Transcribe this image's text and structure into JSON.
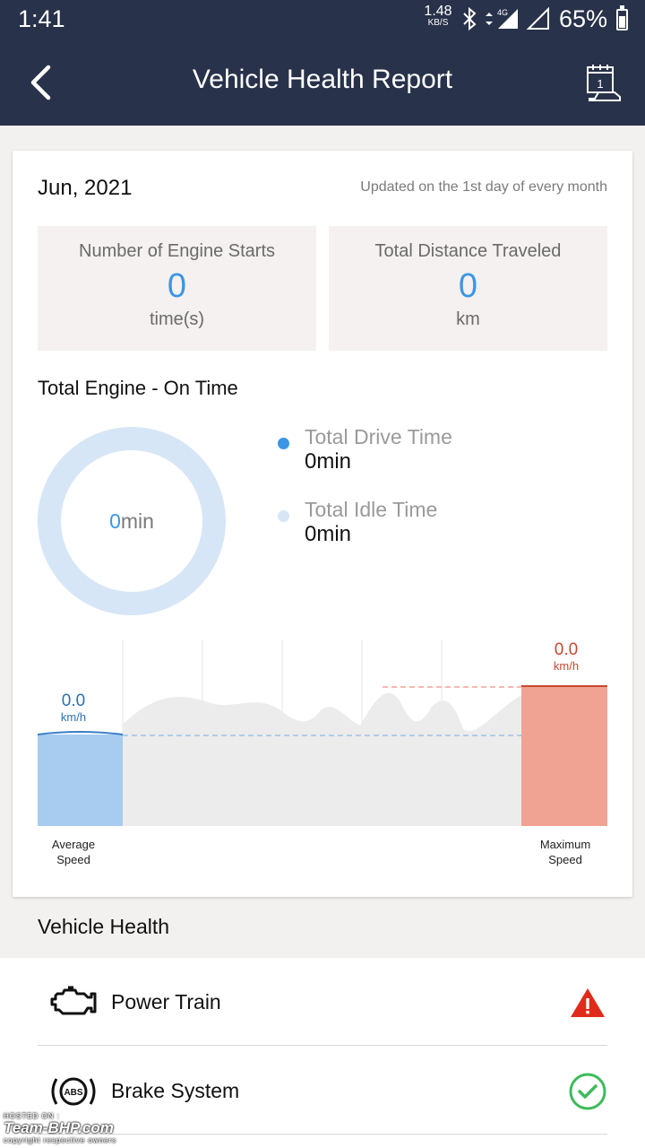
{
  "status_bar": {
    "time": "1:41",
    "net_rate": "1.48",
    "net_unit": "KB/S",
    "network_type": "4G",
    "battery": "65%",
    "battery_level": 0.65
  },
  "app_bar": {
    "title": "Vehicle Health Report",
    "back_icon": "chevron-left-icon",
    "calendar_icon": "calendar-car-icon"
  },
  "report": {
    "month": "Jun, 2021",
    "updated_note": "Updated on the 1st day of every month",
    "engine_starts": {
      "label": "Number of Engine Starts",
      "value": "0",
      "unit": "time(s)"
    },
    "distance": {
      "label": "Total Distance Traveled",
      "value": "0",
      "unit": "km"
    },
    "engine_on_title": "Total Engine - On Time",
    "donut": {
      "value": "0",
      "unit": "min"
    },
    "legend": [
      {
        "label": "Total Drive Time",
        "value": "0min",
        "color": "#3b96e6"
      },
      {
        "label": "Total Idle Time",
        "value": "0min",
        "color": "#d6e6f6"
      }
    ]
  },
  "chart_data": {
    "type": "bar",
    "categories": [
      "Average Speed",
      "Maximum Speed"
    ],
    "values": [
      0.0,
      0.0
    ],
    "value_labels": [
      "0.0",
      "0.0"
    ],
    "unit": "km/h",
    "captions": [
      [
        "Average",
        "Speed"
      ],
      [
        "Maximum",
        "Speed"
      ]
    ],
    "colors": {
      "average": "#a8ccf0",
      "average_line": "#3b80c8",
      "maximum": "#f0a293",
      "maximum_line": "#c8482f",
      "background_wave": "#ececec"
    }
  },
  "vehicle_health": {
    "title": "Vehicle Health",
    "items": [
      {
        "label": "Power Train",
        "icon": "engine-icon",
        "status": "warning",
        "status_icon": "warning-triangle-icon"
      },
      {
        "label": "Brake System",
        "icon": "abs-icon",
        "status": "ok",
        "status_icon": "check-circle-icon"
      }
    ]
  },
  "watermark": {
    "top": "HOSTED ON :",
    "main": "Team-BHP.com",
    "bottom": "copyright respective owners"
  }
}
